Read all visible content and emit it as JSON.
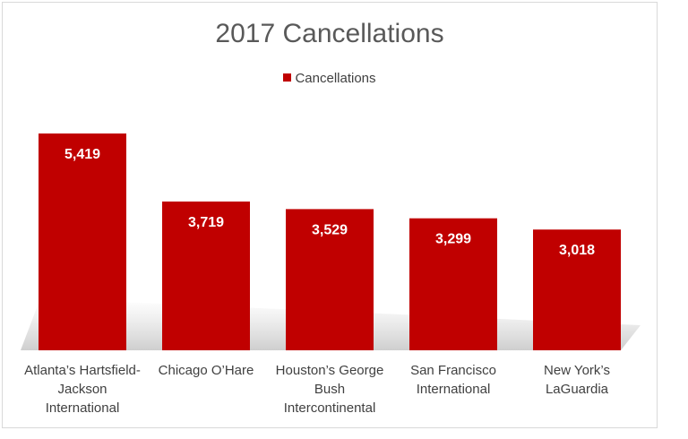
{
  "colors": {
    "bar": "#c00000",
    "data_label": "#ffffff",
    "text": "#404040",
    "title": "#595959"
  },
  "chart_data": {
    "type": "bar",
    "title": "2017 Cancellations",
    "legend": {
      "position": "top",
      "entries": [
        "Cancellations"
      ]
    },
    "categories": [
      "Atlanta’s Hartsfield-Jackson International",
      "Chicago O’Hare",
      "Houston’s George Bush Intercontinental",
      "San Francisco International",
      "New York’s LaGuardia"
    ],
    "series": [
      {
        "name": "Cancellations",
        "values": [
          5419,
          3719,
          3529,
          3299,
          3018
        ]
      }
    ],
    "data_labels": [
      "5,419",
      "3,719",
      "3,529",
      "3,299",
      "3,018"
    ],
    "ylim": [
      0,
      5419
    ],
    "grid": false,
    "xlabel": "",
    "ylabel": ""
  }
}
